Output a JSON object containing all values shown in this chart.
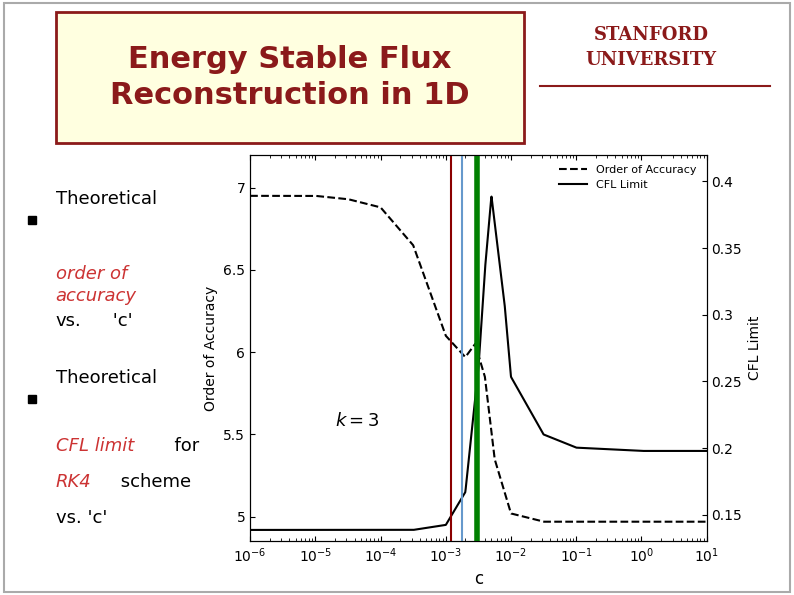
{
  "title": "Energy Stable Flux\nReconstruction in 1D",
  "title_color": "#8B1A1A",
  "title_bg": "#FFFFE0",
  "title_border": "#8B1A1A",
  "stanford_text": "STANFORD\nUNIVERSITY",
  "stanford_color": "#8B1A1A",
  "bullet1_normal": "Theoretical ",
  "bullet1_italic": "order of\naccuracy",
  "bullet1_end": " vs.\n'c'",
  "bullet2_normal": "Theoretical ",
  "bullet2_italic": "CFL limit",
  "bullet2_end": "  for\n",
  "bullet2_italic2": "RK4",
  "bullet2_end2": " scheme\nvs. 'c'",
  "xlabel": "c",
  "ylabel_left": "Order of Accuracy",
  "ylabel_right": "CFL Limit",
  "legend_dashed": "Order of Accuracy",
  "legend_solid": "CFL Limit",
  "annotation": "k = 3",
  "question_mark": "?",
  "question_color": "#008000",
  "vline_red": 0.0012,
  "vline_blue": 0.0018,
  "vline_green": 0.003,
  "ylim_left": [
    4.85,
    7.2
  ],
  "ylim_right": [
    0.13,
    0.42
  ],
  "xlim": [
    1e-06,
    10
  ],
  "bg_color": "#F0F0F0",
  "slide_bg": "#FFFFFF"
}
